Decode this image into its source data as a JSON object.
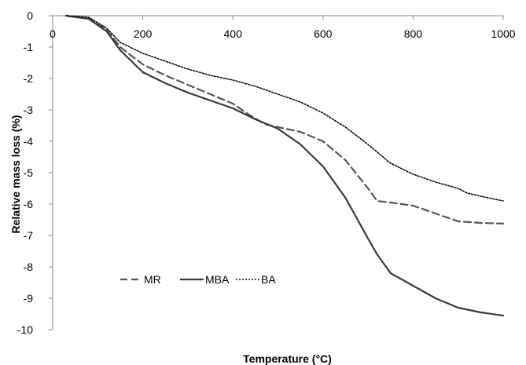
{
  "chart_data": {
    "type": "line",
    "title": "",
    "xlabel": "Temperature (°C)",
    "ylabel": "Relative mass loss (%)",
    "xlim": [
      0,
      1000
    ],
    "ylim": [
      -10,
      0
    ],
    "xticks": [
      "0",
      "200",
      "400",
      "600",
      "800",
      "1000"
    ],
    "yticks": [
      "0",
      "-1",
      "-2",
      "-3",
      "-4",
      "-5",
      "-6",
      "-7",
      "-8",
      "-9",
      "-10"
    ],
    "grid": false,
    "legend_position": "bottom-left",
    "series": [
      {
        "name": "MR",
        "style": "dashed",
        "color": "#555555",
        "x": [
          30,
          80,
          120,
          150,
          200,
          250,
          300,
          350,
          400,
          430,
          470,
          500,
          550,
          600,
          650,
          700,
          720,
          750,
          800,
          850,
          900,
          950,
          1000
        ],
        "y": [
          0,
          -0.1,
          -0.45,
          -1.0,
          -1.55,
          -1.9,
          -2.2,
          -2.5,
          -2.8,
          -3.1,
          -3.45,
          -3.55,
          -3.7,
          -4.0,
          -4.6,
          -5.5,
          -5.9,
          -5.95,
          -6.05,
          -6.3,
          -6.55,
          -6.6,
          -6.62
        ]
      },
      {
        "name": "MBA",
        "style": "solid",
        "color": "#3a3a3a",
        "x": [
          30,
          80,
          120,
          150,
          200,
          250,
          300,
          350,
          400,
          450,
          500,
          550,
          600,
          650,
          700,
          720,
          750,
          800,
          850,
          900,
          950,
          1000
        ],
        "y": [
          0,
          -0.1,
          -0.5,
          -1.1,
          -1.8,
          -2.15,
          -2.45,
          -2.7,
          -2.95,
          -3.3,
          -3.6,
          -4.1,
          -4.8,
          -5.8,
          -7.1,
          -7.6,
          -8.2,
          -8.6,
          -9.0,
          -9.3,
          -9.45,
          -9.55
        ]
      },
      {
        "name": "BA",
        "style": "dotted",
        "color": "#111111",
        "x": [
          30,
          80,
          120,
          150,
          200,
          250,
          300,
          350,
          400,
          450,
          500,
          550,
          600,
          650,
          700,
          750,
          800,
          850,
          900,
          920,
          950,
          1000
        ],
        "y": [
          0,
          -0.05,
          -0.4,
          -0.85,
          -1.2,
          -1.45,
          -1.7,
          -1.9,
          -2.05,
          -2.25,
          -2.5,
          -2.75,
          -3.1,
          -3.55,
          -4.1,
          -4.7,
          -5.05,
          -5.3,
          -5.5,
          -5.65,
          -5.75,
          -5.9
        ]
      }
    ]
  }
}
